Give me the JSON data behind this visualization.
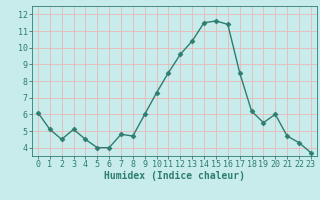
{
  "x": [
    0,
    1,
    2,
    3,
    4,
    5,
    6,
    7,
    8,
    9,
    10,
    11,
    12,
    13,
    14,
    15,
    16,
    17,
    18,
    19,
    20,
    21,
    22,
    23
  ],
  "y": [
    6.1,
    5.1,
    4.5,
    5.1,
    4.5,
    4.0,
    4.0,
    4.8,
    4.7,
    6.0,
    7.3,
    8.5,
    9.6,
    10.4,
    11.5,
    11.6,
    11.4,
    8.5,
    6.2,
    5.5,
    6.0,
    4.7,
    4.3,
    3.7
  ],
  "line_color": "#2e7d6e",
  "marker": "D",
  "marker_size": 2.5,
  "bg_color": "#c8ecec",
  "grid_color": "#e8b8b8",
  "xlabel": "Humidex (Indice chaleur)",
  "xlim": [
    -0.5,
    23.5
  ],
  "ylim": [
    3.5,
    12.5
  ],
  "yticks": [
    4,
    5,
    6,
    7,
    8,
    9,
    10,
    11,
    12
  ],
  "xticks": [
    0,
    1,
    2,
    3,
    4,
    5,
    6,
    7,
    8,
    9,
    10,
    11,
    12,
    13,
    14,
    15,
    16,
    17,
    18,
    19,
    20,
    21,
    22,
    23
  ],
  "tick_fontsize": 6,
  "label_fontsize": 7,
  "axis_color": "#2e7d6e",
  "spine_color": "#2e7d6e"
}
